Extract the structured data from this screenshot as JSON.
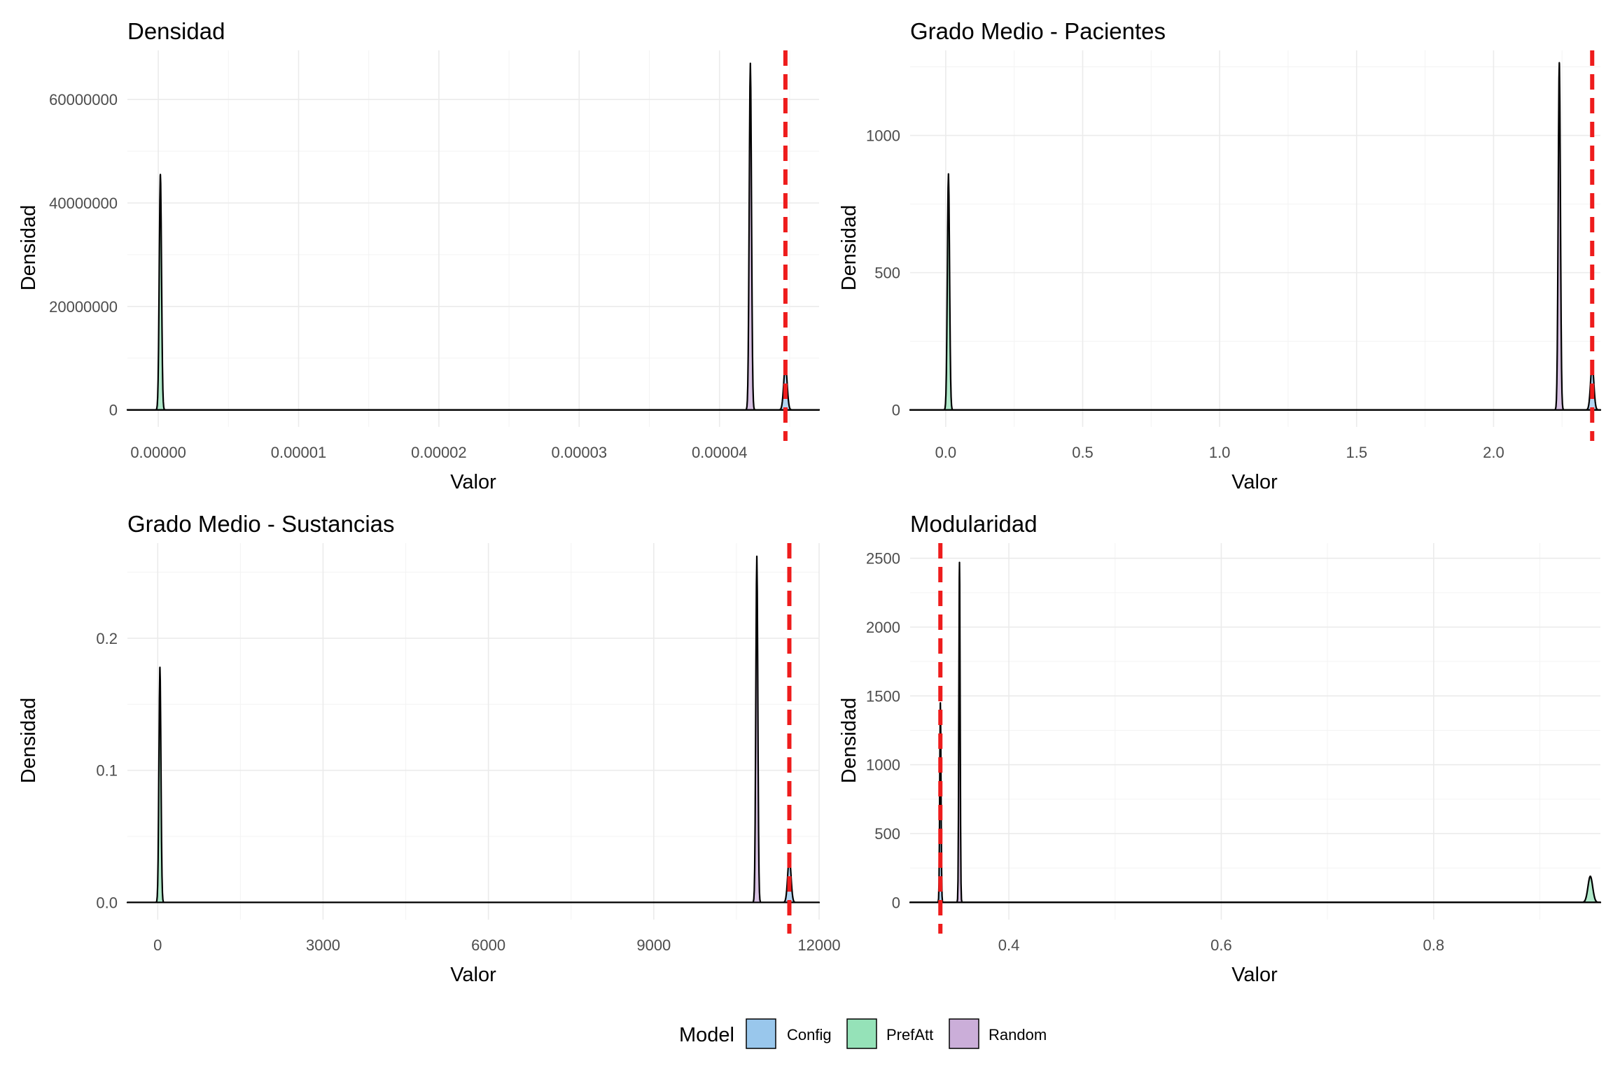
{
  "chart_data": [
    {
      "type": "area",
      "title": "Densidad",
      "xlabel": "Valor",
      "ylabel": "Densidad",
      "xlim": [
        -2.2e-06,
        4.71e-05
      ],
      "ylim": [
        -3300000,
        69500000
      ],
      "xticks": [
        0,
        1e-05,
        2e-05,
        3e-05,
        4e-05
      ],
      "xtick_labels": [
        "0.00000",
        "0.00001",
        "0.00002",
        "0.00003",
        "0.00004"
      ],
      "yticks": [
        0,
        20000000,
        40000000,
        60000000
      ],
      "ytick_labels": [
        "0",
        "20000000",
        "40000000",
        "60000000"
      ],
      "observed_line": 4.47e-05,
      "series": [
        {
          "name": "Config",
          "peaks": [
            {
              "x": 4.47e-05,
              "height": 8700000,
              "width": 1.2e-07
            }
          ]
        },
        {
          "name": "PrefAtt",
          "peaks": [
            {
              "x": 1.5e-07,
              "height": 45500000,
              "width": 8e-08
            }
          ]
        },
        {
          "name": "Random",
          "peaks": [
            {
              "x": 4.22e-05,
              "height": 67000000,
              "width": 8e-08
            }
          ]
        }
      ]
    },
    {
      "type": "area",
      "title": "Grado Medio - Pacientes",
      "xlabel": "Valor",
      "ylabel": "Densidad",
      "xlim": [
        -0.13,
        2.39
      ],
      "ylim": [
        -62,
        1310
      ],
      "xticks": [
        0,
        0.5,
        1.0,
        1.5,
        2.0
      ],
      "xtick_labels": [
        "0.0",
        "0.5",
        "1.0",
        "1.5",
        "2.0"
      ],
      "yticks": [
        0,
        500,
        1000
      ],
      "ytick_labels": [
        "0",
        "500",
        "1000"
      ],
      "observed_line": 2.36,
      "series": [
        {
          "name": "Config",
          "peaks": [
            {
              "x": 2.36,
              "height": 165,
              "width": 0.006
            }
          ]
        },
        {
          "name": "PrefAtt",
          "peaks": [
            {
              "x": 0.01,
              "height": 860,
              "width": 0.004
            }
          ]
        },
        {
          "name": "Random",
          "peaks": [
            {
              "x": 2.24,
              "height": 1265,
              "width": 0.004
            }
          ]
        }
      ]
    },
    {
      "type": "area",
      "title": "Grado Medio - Sustancias",
      "xlabel": "Valor",
      "ylabel": "Densidad",
      "xlim": [
        -550,
        12000
      ],
      "ylim": [
        -0.013,
        0.272
      ],
      "xticks": [
        0,
        3000,
        6000,
        9000,
        12000
      ],
      "xtick_labels": [
        "0",
        "3000",
        "6000",
        "9000",
        "12000"
      ],
      "yticks": [
        0,
        0.1,
        0.2
      ],
      "ytick_labels": [
        "0.0",
        "0.1",
        "0.2"
      ],
      "observed_line": 11460,
      "series": [
        {
          "name": "Config",
          "peaks": [
            {
              "x": 11460,
              "height": 0.034,
              "width": 30
            }
          ]
        },
        {
          "name": "PrefAtt",
          "peaks": [
            {
              "x": 40,
              "height": 0.178,
              "width": 18
            }
          ]
        },
        {
          "name": "Random",
          "peaks": [
            {
              "x": 10870,
              "height": 0.262,
              "width": 18
            }
          ]
        }
      ]
    },
    {
      "type": "area",
      "title": "Modularidad",
      "xlabel": "Valor",
      "ylabel": "Densidad",
      "xlim": [
        0.307,
        0.957
      ],
      "ylim": [
        -125,
        2610
      ],
      "xticks": [
        0.4,
        0.6,
        0.8
      ],
      "xtick_labels": [
        "0.4",
        "0.6",
        "0.8"
      ],
      "yticks": [
        0,
        500,
        1000,
        1500,
        2000,
        2500
      ],
      "ytick_labels": [
        "0",
        "500",
        "1000",
        "1500",
        "2000",
        "2500"
      ],
      "observed_line": 0.3355,
      "series": [
        {
          "name": "Config",
          "peaks": [
            {
              "x": 0.3355,
              "height": 1450,
              "width": 0.0006
            }
          ]
        },
        {
          "name": "PrefAtt",
          "peaks": [
            {
              "x": 0.9475,
              "height": 190,
              "width": 0.0022
            }
          ]
        },
        {
          "name": "Random",
          "peaks": [
            {
              "x": 0.3535,
              "height": 2470,
              "width": 0.0006
            }
          ]
        }
      ]
    }
  ],
  "legend": {
    "title": "Model",
    "items": [
      {
        "label": "Config",
        "color": "#99c7ec"
      },
      {
        "label": "PrefAtt",
        "color": "#95e2b8"
      },
      {
        "label": "Random",
        "color": "#cbaed9"
      }
    ]
  },
  "colors": {
    "observed_line": "#ee1c1c",
    "outline": "#000000",
    "Config": "#99c7ec",
    "PrefAtt": "#95e2b8",
    "Random": "#cbaed9"
  }
}
